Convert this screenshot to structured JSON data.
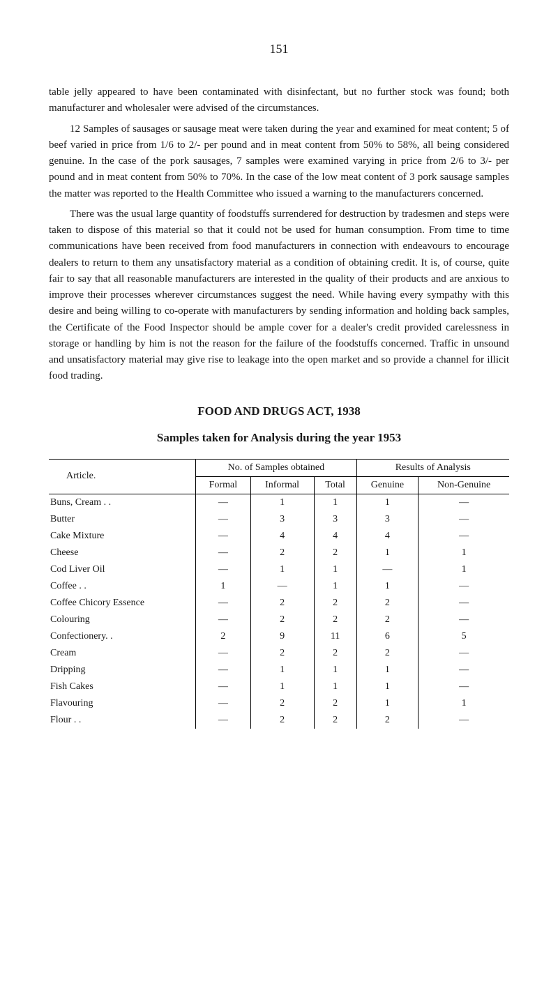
{
  "page_number": "151",
  "paragraphs": {
    "p1": "table jelly appeared to have been contaminated with disinfectant, but no further stock was found; both manufacturer and wholesaler were advised of the circumstances.",
    "p2": "12 Samples of sausages or sausage meat were taken during the year and examined for meat content; 5 of beef varied in price from 1/6 to 2/- per pound and in meat content from 50% to 58%, all being considered genuine. In the case of the pork sausages, 7 samples were examined varying in price from 2/6 to 3/- per pound and in meat content from 50% to 70%. In the case of the low meat content of 3 pork sausage samples the matter was reported to the Health Committee who issued a warning to the manufacturers concerned.",
    "p3": "There was the usual large quantity of foodstuffs surrendered for destruction by tradesmen and steps were taken to dispose of this material so that it could not be used for human consumption. From time to time communications have been received from food manufacturers in connection with endeavours to encourage dealers to return to them any unsatisfactory material as a condition of obtaining credit. It is, of course, quite fair to say that all reasonable manufacturers are interested in the quality of their products and are anxious to improve their processes wherever circumstances suggest the need. While having every sympathy with this desire and being willing to co-operate with manufacturers by sending information and holding back samples, the Certificate of the Food Inspector should be ample cover for a dealer's credit provided carelessness in storage or handling by him is not the reason for the failure of the foodstuffs concerned. Traffic in unsound and unsatisfactory material may give rise to leakage into the open market and so provide a channel for illicit food trading."
  },
  "heading1": "FOOD AND DRUGS ACT, 1938",
  "heading2": "Samples taken for Analysis during the year 1953",
  "table": {
    "headers": {
      "article": "Article.",
      "samples_group": "No. of Samples obtained",
      "results_group": "Results of Analysis",
      "formal": "Formal",
      "informal": "Informal",
      "total": "Total",
      "genuine": "Genuine",
      "non_genuine": "Non-Genuine"
    },
    "rows": [
      {
        "article": "Buns, Cream . .",
        "formal": "—",
        "informal": "1",
        "total": "1",
        "genuine": "1",
        "non_genuine": "—"
      },
      {
        "article": "Butter",
        "formal": "—",
        "informal": "3",
        "total": "3",
        "genuine": "3",
        "non_genuine": "—"
      },
      {
        "article": "Cake Mixture",
        "formal": "—",
        "informal": "4",
        "total": "4",
        "genuine": "4",
        "non_genuine": "—"
      },
      {
        "article": "Cheese",
        "formal": "—",
        "informal": "2",
        "total": "2",
        "genuine": "1",
        "non_genuine": "1"
      },
      {
        "article": "Cod Liver Oil",
        "formal": "—",
        "informal": "1",
        "total": "1",
        "genuine": "—",
        "non_genuine": "1"
      },
      {
        "article": "Coffee . .",
        "formal": "1",
        "informal": "—",
        "total": "1",
        "genuine": "1",
        "non_genuine": "—"
      },
      {
        "article": "Coffee Chicory Essence",
        "formal": "—",
        "informal": "2",
        "total": "2",
        "genuine": "2",
        "non_genuine": "—"
      },
      {
        "article": "Colouring",
        "formal": "—",
        "informal": "2",
        "total": "2",
        "genuine": "2",
        "non_genuine": "—"
      },
      {
        "article": "Confectionery. .",
        "formal": "2",
        "informal": "9",
        "total": "11",
        "genuine": "6",
        "non_genuine": "5"
      },
      {
        "article": "Cream",
        "formal": "—",
        "informal": "2",
        "total": "2",
        "genuine": "2",
        "non_genuine": "—"
      },
      {
        "article": "Dripping",
        "formal": "—",
        "informal": "1",
        "total": "1",
        "genuine": "1",
        "non_genuine": "—"
      },
      {
        "article": "Fish Cakes",
        "formal": "—",
        "informal": "1",
        "total": "1",
        "genuine": "1",
        "non_genuine": "—"
      },
      {
        "article": "Flavouring",
        "formal": "—",
        "informal": "2",
        "total": "2",
        "genuine": "1",
        "non_genuine": "1"
      },
      {
        "article": "Flour . .",
        "formal": "—",
        "informal": "2",
        "total": "2",
        "genuine": "2",
        "non_genuine": "—"
      }
    ]
  }
}
